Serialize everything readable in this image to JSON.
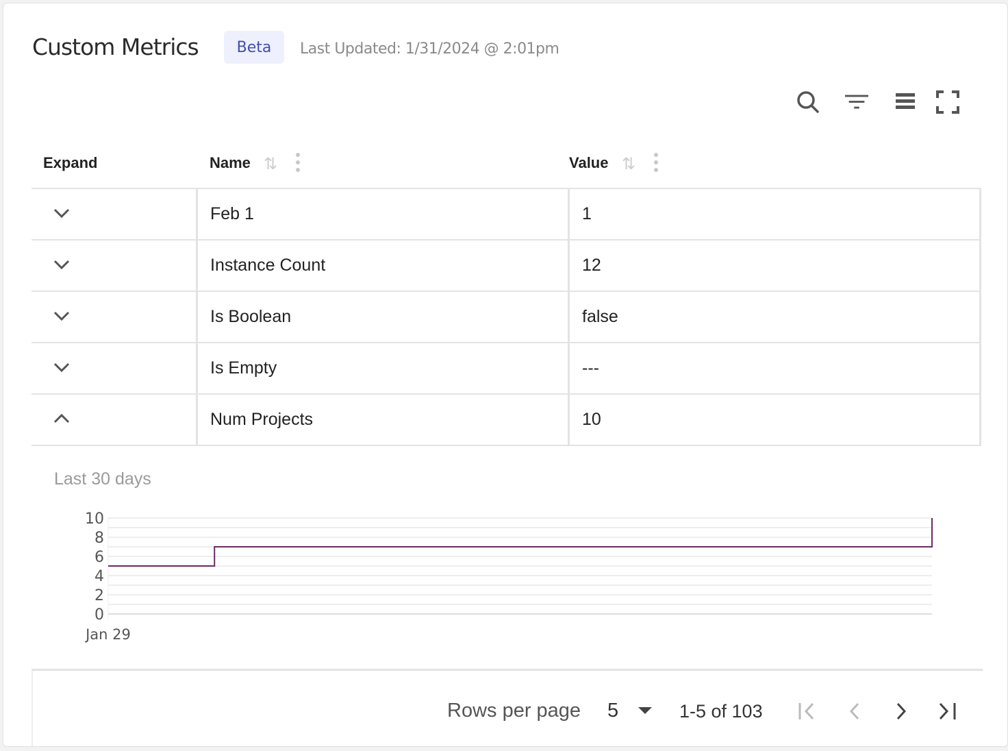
{
  "header": {
    "title": "Custom Metrics",
    "badge": "Beta",
    "last_updated": "Last Updated: 1/31/2024 @ 2:01pm"
  },
  "toolbar": {
    "icons": [
      "search-icon",
      "filter-icon",
      "density-icon",
      "fullscreen-icon"
    ]
  },
  "table": {
    "columns": [
      {
        "label": "Expand"
      },
      {
        "label": "Name"
      },
      {
        "label": "Value"
      }
    ],
    "rows": [
      {
        "name": "Feb 1",
        "value": "1",
        "expanded": false
      },
      {
        "name": "Instance Count",
        "value": "12",
        "expanded": false
      },
      {
        "name": "Is Boolean",
        "value": "false",
        "expanded": false
      },
      {
        "name": "Is Empty",
        "value": "---",
        "expanded": false
      },
      {
        "name": "Num Projects",
        "value": "10",
        "expanded": true
      }
    ]
  },
  "detail": {
    "subtitle": "Last 30 days"
  },
  "chart_data": {
    "type": "line",
    "step": "after",
    "x": [
      "2024-01-29 00:00",
      "2024-01-29 08:00",
      "2024-01-31 14:00"
    ],
    "values": [
      5,
      7,
      10
    ],
    "xticks": [
      "Jan 29"
    ],
    "yticks": [
      "0",
      "2",
      "4",
      "6",
      "8",
      "10"
    ],
    "ylim": [
      0,
      10
    ],
    "grid": true,
    "color": "#6b2a63"
  },
  "pagination": {
    "rows_per_page_label": "Rows per page",
    "rows_per_page": "5",
    "range": "1-5 of 103"
  }
}
